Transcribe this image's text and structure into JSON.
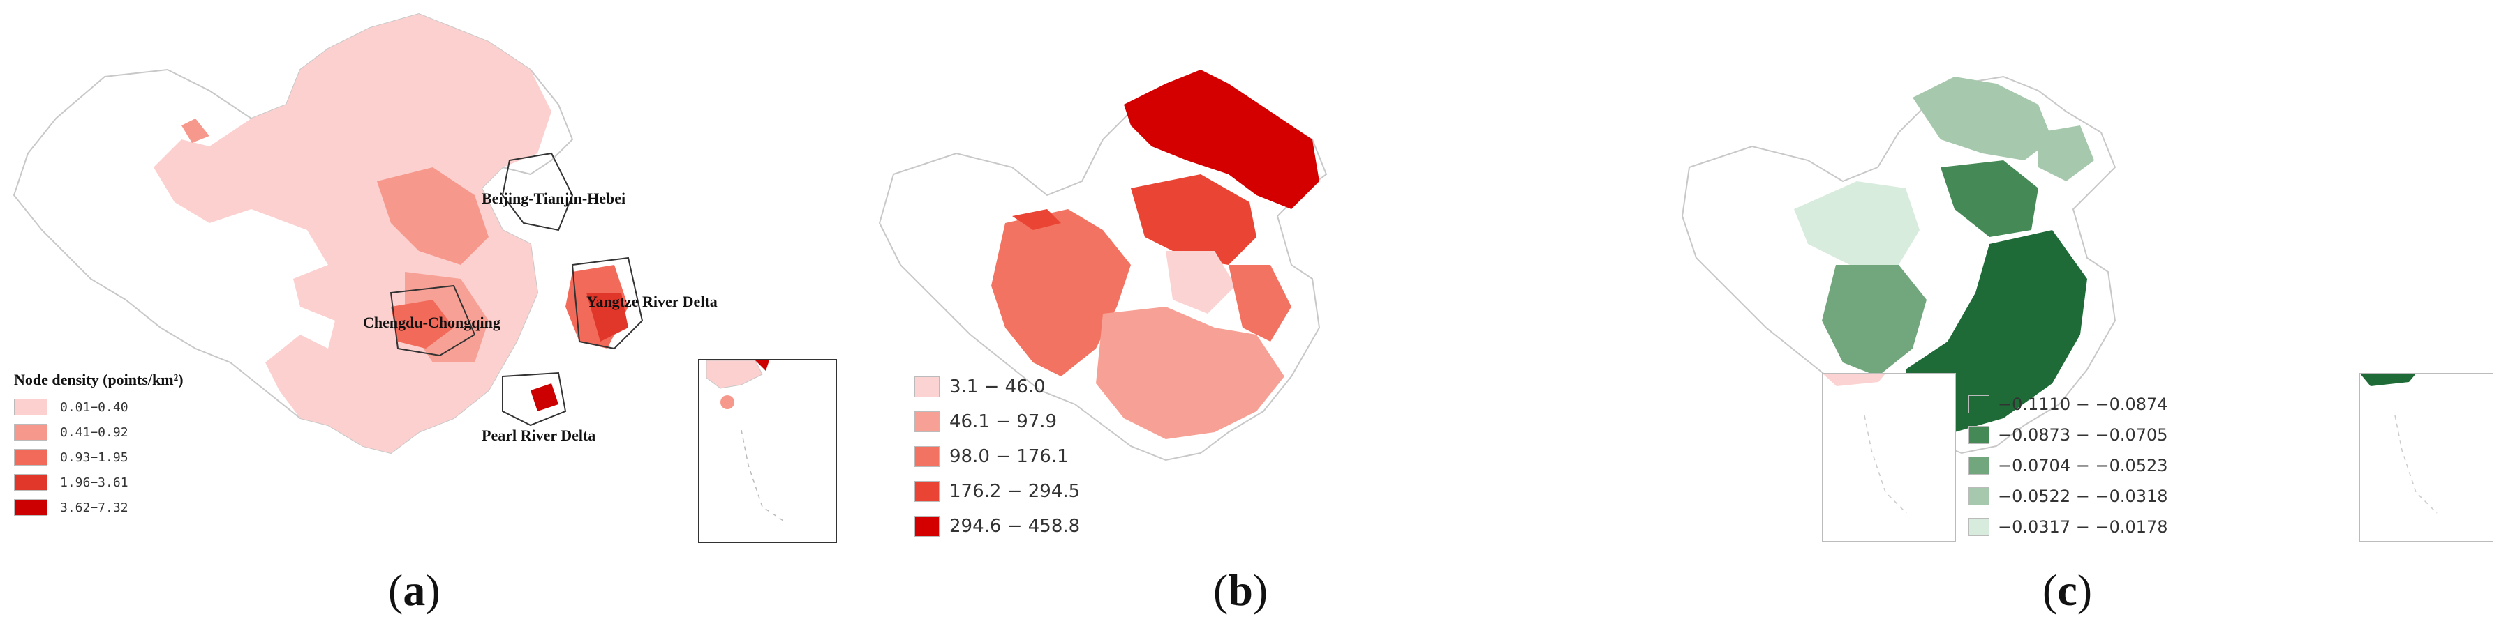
{
  "panels": [
    {
      "caption_letter": "a",
      "legend_title": "Node density (points/km²)",
      "legend": [
        {
          "label": "0.01−0.40",
          "color": "#fbd0cf"
        },
        {
          "label": "0.41−0.92",
          "color": "#f6998c"
        },
        {
          "label": "0.93−1.95",
          "color": "#f26a59"
        },
        {
          "label": "1.96−3.61",
          "color": "#e1362a"
        },
        {
          "label": "3.62−7.32",
          "color": "#cc0000"
        }
      ],
      "region_labels": {
        "jjj": "Beijing-Tianjin-Hebei",
        "cc": "Chengdu-Chongqing",
        "yrd": "Yangtze River Delta",
        "prd": "Pearl River Delta"
      }
    },
    {
      "caption_letter": "b",
      "legend": [
        {
          "label": "3.1 − 46.0",
          "color": "#fbd3d2"
        },
        {
          "label": "46.1 − 97.9",
          "color": "#f7a196"
        },
        {
          "label": "98.0 − 176.1",
          "color": "#f27361"
        },
        {
          "label": "176.2 − 294.5",
          "color": "#ea4534"
        },
        {
          "label": "294.6 − 458.8",
          "color": "#d40000"
        }
      ]
    },
    {
      "caption_letter": "c",
      "legend": [
        {
          "label": "−0.1110 − −0.0874",
          "color": "#1e6b37"
        },
        {
          "label": "−0.0873 − −0.0705",
          "color": "#458a56"
        },
        {
          "label": "−0.0704 − −0.0523",
          "color": "#72a77d"
        },
        {
          "label": "−0.0522 − −0.0318",
          "color": "#a6c8ac"
        },
        {
          "label": "−0.0317 − −0.0178",
          "color": "#d8ecdd"
        }
      ]
    }
  ],
  "colors": {
    "outline": "#c8c8c8",
    "border_dark": "#333333"
  }
}
